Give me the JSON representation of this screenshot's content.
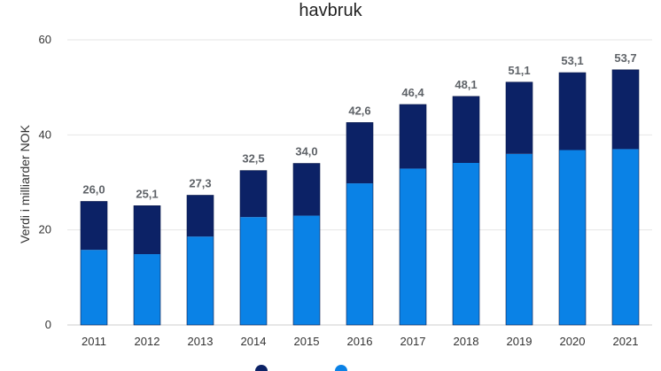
{
  "chart_data": {
    "type": "bar",
    "stacked": true,
    "title": "havbruk",
    "xlabel": "",
    "ylabel": "Verdi i milliarder NOK",
    "ylim": [
      0,
      60
    ],
    "yticks": [
      0,
      20,
      40,
      60
    ],
    "grid": true,
    "legend_position": "bottom",
    "categories": [
      "2011",
      "2012",
      "2013",
      "2014",
      "2015",
      "2016",
      "2017",
      "2018",
      "2019",
      "2020",
      "2021"
    ],
    "series": [
      {
        "color": "#0a82e6",
        "values": [
          15.8,
          14.9,
          18.6,
          22.7,
          23.0,
          29.8,
          32.9,
          34.1,
          36.0,
          36.8,
          37.0
        ]
      },
      {
        "color": "#0c2266",
        "values": [
          10.2,
          10.2,
          8.7,
          9.8,
          11.0,
          12.8,
          13.5,
          14.0,
          15.1,
          16.3,
          16.7
        ]
      }
    ],
    "totals": [
      "26,0",
      "25,1",
      "27,3",
      "32,5",
      "34,0",
      "42,6",
      "46,4",
      "48,1",
      "51,1",
      "53,1",
      "53,7"
    ]
  }
}
